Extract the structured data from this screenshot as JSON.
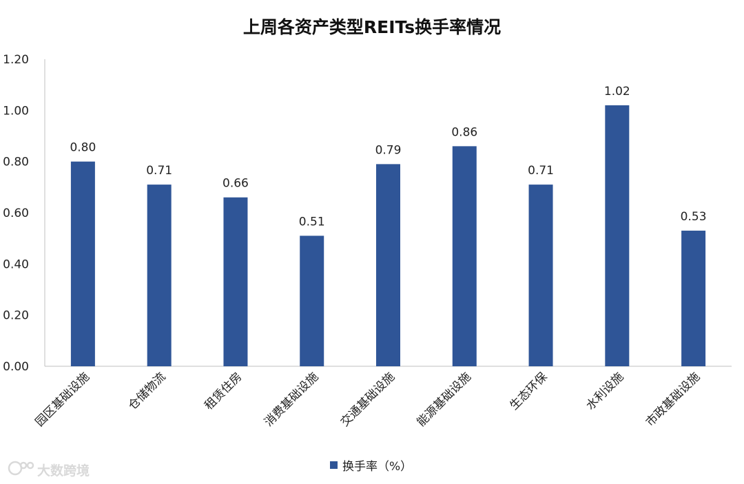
{
  "chart_data": {
    "type": "bar",
    "title": "上周各资产类型REITs换手率情况",
    "categories": [
      "园区基础设施",
      "仓储物流",
      "租赁住房",
      "消费基础设施",
      "交通基础设施",
      "能源基础设施",
      "生态环保",
      "水利设施",
      "市政基础设施"
    ],
    "series": [
      {
        "name": "换手率（%）",
        "values": [
          0.8,
          0.71,
          0.66,
          0.51,
          0.79,
          0.86,
          0.71,
          1.02,
          0.53
        ]
      }
    ],
    "value_labels": [
      "0.80",
      "0.71",
      "0.66",
      "0.51",
      "0.79",
      "0.86",
      "0.71",
      "1.02",
      "0.53"
    ],
    "ylim": [
      0,
      1.2
    ],
    "yticks": [
      "0.00",
      "0.20",
      "0.40",
      "0.60",
      "0.80",
      "1.00",
      "1.20"
    ],
    "grid": false,
    "legend_position": "bottom",
    "bar_color": "#2F5597"
  },
  "watermark": {
    "text": "大数跨境"
  }
}
